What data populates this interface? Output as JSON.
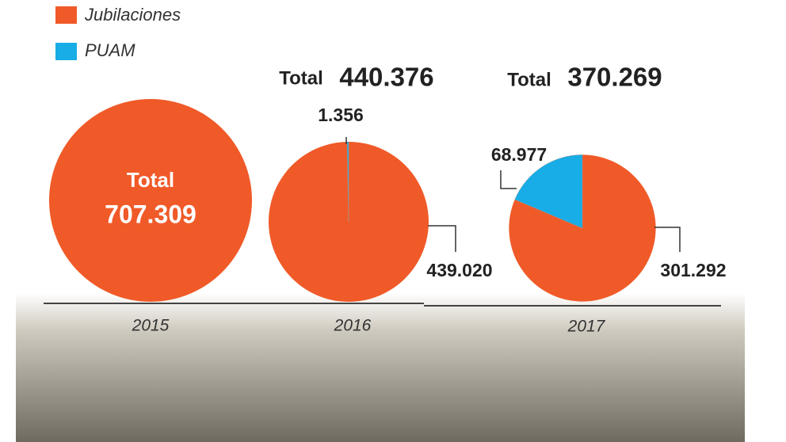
{
  "legend": {
    "categories": [
      "Jubilaciones",
      "PUAM"
    ],
    "colors": [
      "#f05a28",
      "#18ade6"
    ]
  },
  "chart_data": [
    {
      "type": "pie",
      "x_label": "2015",
      "total_label": "Total",
      "total": {
        "value": 707309,
        "label": "707.309"
      },
      "values": [
        707309
      ]
    },
    {
      "type": "pie",
      "x_label": "2016",
      "total_label": "Total",
      "total": {
        "value": 440376,
        "label": "440.376"
      },
      "values": [
        439020,
        1356
      ],
      "value_labels": [
        "439.020",
        "1.356"
      ]
    },
    {
      "type": "pie",
      "x_label": "2017",
      "total_label": "Total",
      "total": {
        "value": 370269,
        "label": "370.269"
      },
      "values": [
        301292,
        68977
      ],
      "value_labels": [
        "301.292",
        "68.977"
      ]
    }
  ]
}
